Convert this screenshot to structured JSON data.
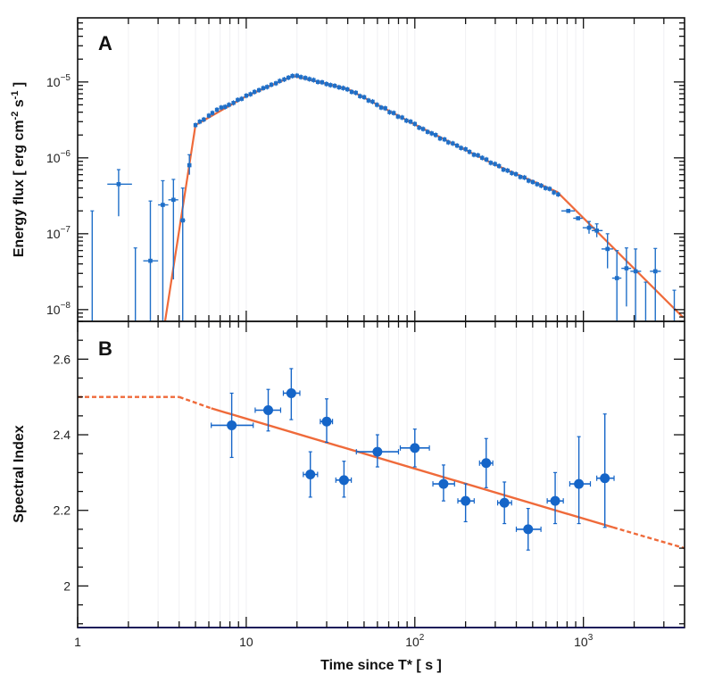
{
  "chart_data": [
    {
      "type": "scatter",
      "panel_label": "A",
      "ylabel": "Energy flux [ erg cm-2 s-1 ]",
      "ylabel_parts": {
        "pre": "Energy flux [ erg cm",
        "exp1": "-2",
        "mid": " s",
        "exp2": "-1",
        "post": " ]"
      },
      "xscale": "log",
      "yscale": "log",
      "xlim": [
        1,
        3980
      ],
      "ylim": [
        7e-09,
        7e-05
      ],
      "yticks": [
        {
          "value": 1e-05,
          "base": "10",
          "exp": "−5"
        },
        {
          "value": 1e-06,
          "base": "10",
          "exp": "−6"
        },
        {
          "value": 1e-07,
          "base": "10",
          "exp": "−7"
        },
        {
          "value": 1e-08,
          "base": "10",
          "exp": "−8"
        }
      ],
      "colors": {
        "data": "#1f6fc8",
        "fit": "#ef6a3a"
      },
      "fit_model": [
        [
          3.3,
          7e-09
        ],
        [
          5,
          2.7e-06
        ],
        [
          10,
          6.5e-06
        ],
        [
          19,
          1.2e-05
        ],
        [
          40,
          8.1e-06
        ],
        [
          100,
          2.75e-06
        ],
        [
          300,
          8.1e-07
        ],
        [
          700,
          3.55e-07
        ],
        [
          3900,
          7.9e-09
        ]
      ],
      "sparse_points": [
        {
          "t": 1.22,
          "f": null,
          "f_hi": 2e-07
        },
        {
          "t": 1.75,
          "f": 4.5e-07,
          "f_lo": 1.7e-07,
          "f_hi": 7e-07,
          "t_lo": 1.5,
          "t_hi": 2.1
        },
        {
          "t": 2.2,
          "f": null,
          "f_hi": 6.5e-08
        },
        {
          "t": 2.7,
          "f": 4.4e-08,
          "f_hi": 2.7e-07,
          "t_lo": 2.45,
          "t_hi": 3.0
        },
        {
          "t": 3.2,
          "f": 2.4e-07,
          "f_hi": 5e-07,
          "t_lo": 3.0,
          "t_hi": 3.45
        },
        {
          "t": 3.7,
          "f": 2.8e-07,
          "f_lo": 2.5e-08,
          "f_hi": 5.2e-07,
          "t_lo": 3.45,
          "t_hi": 3.95
        },
        {
          "t": 4.2,
          "f": 1.5e-07,
          "f_hi": 4e-07,
          "t_lo": 4.05,
          "t_hi": 4.35
        },
        {
          "t": 4.6,
          "f": 8e-07,
          "f_lo": 6e-07,
          "f_hi": 1.1e-06
        },
        {
          "t": 813,
          "f": 2e-07,
          "t_lo": 740,
          "t_hi": 890
        },
        {
          "t": 930,
          "f": 1.6e-07,
          "t_lo": 870,
          "t_hi": 990
        },
        {
          "t": 1080,
          "f": 1.2e-07,
          "f_lo": 1e-07,
          "f_hi": 1.45e-07,
          "t_lo": 990,
          "t_hi": 1170
        },
        {
          "t": 1200,
          "f": 1.1e-07,
          "f_lo": 9e-08,
          "f_hi": 1.35e-07,
          "t_lo": 1120,
          "t_hi": 1300
        },
        {
          "t": 1390,
          "f": 6.3e-08,
          "f_lo": 3.5e-08,
          "f_hi": 1e-07,
          "t_lo": 1280,
          "t_hi": 1500
        },
        {
          "t": 1580,
          "f": 2.6e-08,
          "f_hi": 6e-08,
          "t_lo": 1480,
          "t_hi": 1680
        },
        {
          "t": 1800,
          "f": 3.5e-08,
          "f_lo": 1.1e-08,
          "f_hi": 6.5e-08,
          "t_lo": 1680,
          "t_hi": 1920
        },
        {
          "t": 2040,
          "f": 3.2e-08,
          "f_hi": 6.3e-08,
          "t_lo": 1900,
          "t_hi": 2200
        },
        {
          "t": 2340,
          "f": null,
          "f_hi": 2.3e-08
        },
        {
          "t": 2670,
          "f": 3.2e-08,
          "f_hi": 6.4e-08,
          "t_lo": 2480,
          "t_hi": 2880
        },
        {
          "t": 3460,
          "f": null,
          "f_hi": 1.8e-08
        }
      ],
      "dense_points": [
        [
          5.0,
          2.7e-06
        ],
        [
          5.3,
          3e-06
        ],
        [
          5.6,
          3.2e-06
        ],
        [
          6.0,
          3.6e-06
        ],
        [
          6.3,
          3.9e-06
        ],
        [
          6.7,
          4.3e-06
        ],
        [
          7.1,
          4.6e-06
        ],
        [
          7.5,
          4.7e-06
        ],
        [
          7.9,
          5e-06
        ],
        [
          8.4,
          5.3e-06
        ],
        [
          8.9,
          5.8e-06
        ],
        [
          9.4,
          6e-06
        ],
        [
          10,
          6.6e-06
        ],
        [
          10.6,
          6.9e-06
        ],
        [
          11.2,
          7.4e-06
        ],
        [
          11.9,
          7.8e-06
        ],
        [
          12.6,
          8.3e-06
        ],
        [
          13.3,
          8.6e-06
        ],
        [
          14.1,
          9.2e-06
        ],
        [
          15.0,
          9.6e-06
        ],
        [
          15.8,
          1.03e-05
        ],
        [
          16.8,
          1.08e-05
        ],
        [
          17.8,
          1.14e-05
        ],
        [
          18.8,
          1.2e-05
        ],
        [
          20,
          1.21e-05
        ],
        [
          21.1,
          1.16e-05
        ],
        [
          22.4,
          1.13e-05
        ],
        [
          23.7,
          1.09e-05
        ],
        [
          25.1,
          1.06e-05
        ],
        [
          26.6,
          1e-05
        ],
        [
          28.2,
          9.9e-06
        ],
        [
          29.9,
          9.4e-06
        ],
        [
          31.6,
          9.1e-06
        ],
        [
          33.5,
          8.9e-06
        ],
        [
          35.5,
          8.5e-06
        ],
        [
          37.6,
          8.3e-06
        ],
        [
          39.8,
          8e-06
        ],
        [
          42.2,
          7.4e-06
        ],
        [
          44.7,
          7.2e-06
        ],
        [
          47.3,
          6.5e-06
        ],
        [
          50.1,
          6.3e-06
        ],
        [
          53.1,
          5.7e-06
        ],
        [
          56.2,
          5.5e-06
        ],
        [
          59.6,
          5e-06
        ],
        [
          63.1,
          4.6e-06
        ],
        [
          66.8,
          4.5e-06
        ],
        [
          70.8,
          4e-06
        ],
        [
          75.0,
          3.9e-06
        ],
        [
          79.4,
          3.5e-06
        ],
        [
          84.1,
          3.4e-06
        ],
        [
          89.1,
          3.1e-06
        ],
        [
          94.4,
          3e-06
        ],
        [
          100,
          2.8e-06
        ],
        [
          106,
          2.5e-06
        ],
        [
          112,
          2.4e-06
        ],
        [
          119,
          2.2e-06
        ],
        [
          126,
          2.1e-06
        ],
        [
          133,
          2e-06
        ],
        [
          141,
          1.8e-06
        ],
        [
          150,
          1.75e-06
        ],
        [
          158,
          1.6e-06
        ],
        [
          168,
          1.55e-06
        ],
        [
          178,
          1.45e-06
        ],
        [
          188,
          1.35e-06
        ],
        [
          200,
          1.3e-06
        ],
        [
          211,
          1.2e-06
        ],
        [
          224,
          1.1e-06
        ],
        [
          237,
          1.08e-06
        ],
        [
          251,
          1e-06
        ],
        [
          266,
          9.5e-07
        ],
        [
          282,
          8.6e-07
        ],
        [
          299,
          8.3e-07
        ],
        [
          316,
          7.8e-07
        ],
        [
          335,
          7e-07
        ],
        [
          355,
          6.8e-07
        ],
        [
          376,
          6.3e-07
        ],
        [
          398,
          6.1e-07
        ],
        [
          422,
          5.6e-07
        ],
        [
          447,
          5.5e-07
        ],
        [
          473,
          5e-07
        ],
        [
          501,
          4.8e-07
        ],
        [
          531,
          4.5e-07
        ],
        [
          562,
          4.3e-07
        ],
        [
          596,
          4e-07
        ],
        [
          631,
          3.9e-07
        ],
        [
          668,
          3.5e-07
        ],
        [
          708,
          3.3e-07
        ]
      ]
    },
    {
      "type": "scatter",
      "panel_label": "B",
      "ylabel": "Spectral Index",
      "xlabel": "Time since T* [ s ]",
      "xscale": "log",
      "xlim": [
        1,
        3980
      ],
      "ylim": [
        1.89,
        2.7
      ],
      "yticks": [
        {
          "value": 2.6,
          "label": "2.6"
        },
        {
          "value": 2.4,
          "label": "2.4"
        },
        {
          "value": 2.2,
          "label": "2.2"
        },
        {
          "value": 2.0,
          "label": "2"
        }
      ],
      "xticks": [
        {
          "value": 1,
          "base": "1",
          "exp": ""
        },
        {
          "value": 10,
          "base": "10",
          "exp": ""
        },
        {
          "value": 100,
          "base": "10",
          "exp": "2"
        },
        {
          "value": 1000,
          "base": "10",
          "exp": "3"
        }
      ],
      "colors": {
        "data": "#1565c8",
        "fit": "#ef6a3a"
      },
      "fit": {
        "dashed_flat": [
          [
            1,
            2.5
          ],
          [
            4,
            2.5
          ]
        ],
        "dashed_early": [
          [
            4,
            2.5
          ],
          [
            6.2,
            2.47
          ]
        ],
        "solid": [
          [
            6.2,
            2.47
          ],
          [
            1500,
            2.155
          ]
        ],
        "dashed_late": [
          [
            1500,
            2.155
          ],
          [
            3980,
            2.1
          ]
        ]
      },
      "points": [
        {
          "t": 8.2,
          "v": 2.425,
          "v_lo": 2.34,
          "v_hi": 2.51,
          "t_lo": 6.2,
          "t_hi": 11
        },
        {
          "t": 13.5,
          "v": 2.465,
          "v_lo": 2.41,
          "v_hi": 2.52,
          "t_lo": 11.3,
          "t_hi": 16.0
        },
        {
          "t": 18.5,
          "v": 2.51,
          "v_lo": 2.44,
          "v_hi": 2.575,
          "t_lo": 16.6,
          "t_hi": 20.8
        },
        {
          "t": 24,
          "v": 2.295,
          "v_lo": 2.235,
          "v_hi": 2.355,
          "t_lo": 21.8,
          "t_hi": 26.5
        },
        {
          "t": 30,
          "v": 2.435,
          "v_lo": 2.38,
          "v_hi": 2.495,
          "t_lo": 27.5,
          "t_hi": 32.5
        },
        {
          "t": 38,
          "v": 2.28,
          "v_lo": 2.235,
          "v_hi": 2.33,
          "t_lo": 34,
          "t_hi": 42
        },
        {
          "t": 60,
          "v": 2.355,
          "v_lo": 2.315,
          "v_hi": 2.4,
          "t_lo": 45,
          "t_hi": 80
        },
        {
          "t": 100,
          "v": 2.365,
          "v_lo": 2.315,
          "v_hi": 2.415,
          "t_lo": 82,
          "t_hi": 122
        },
        {
          "t": 148,
          "v": 2.27,
          "v_lo": 2.225,
          "v_hi": 2.32,
          "t_lo": 128,
          "t_hi": 172
        },
        {
          "t": 200,
          "v": 2.225,
          "v_lo": 2.17,
          "v_hi": 2.27,
          "t_lo": 180,
          "t_hi": 225
        },
        {
          "t": 265,
          "v": 2.325,
          "v_lo": 2.26,
          "v_hi": 2.39,
          "t_lo": 242,
          "t_hi": 290
        },
        {
          "t": 340,
          "v": 2.22,
          "v_lo": 2.165,
          "v_hi": 2.275,
          "t_lo": 310,
          "t_hi": 375
        },
        {
          "t": 470,
          "v": 2.15,
          "v_lo": 2.095,
          "v_hi": 2.205,
          "t_lo": 400,
          "t_hi": 560
        },
        {
          "t": 680,
          "v": 2.225,
          "v_lo": 2.165,
          "v_hi": 2.3,
          "t_lo": 610,
          "t_hi": 760
        },
        {
          "t": 940,
          "v": 2.27,
          "v_lo": 2.165,
          "v_hi": 2.395,
          "t_lo": 830,
          "t_hi": 1100
        },
        {
          "t": 1340,
          "v": 2.285,
          "v_lo": 2.155,
          "v_hi": 2.455,
          "t_lo": 1200,
          "t_hi": 1520
        }
      ]
    }
  ]
}
